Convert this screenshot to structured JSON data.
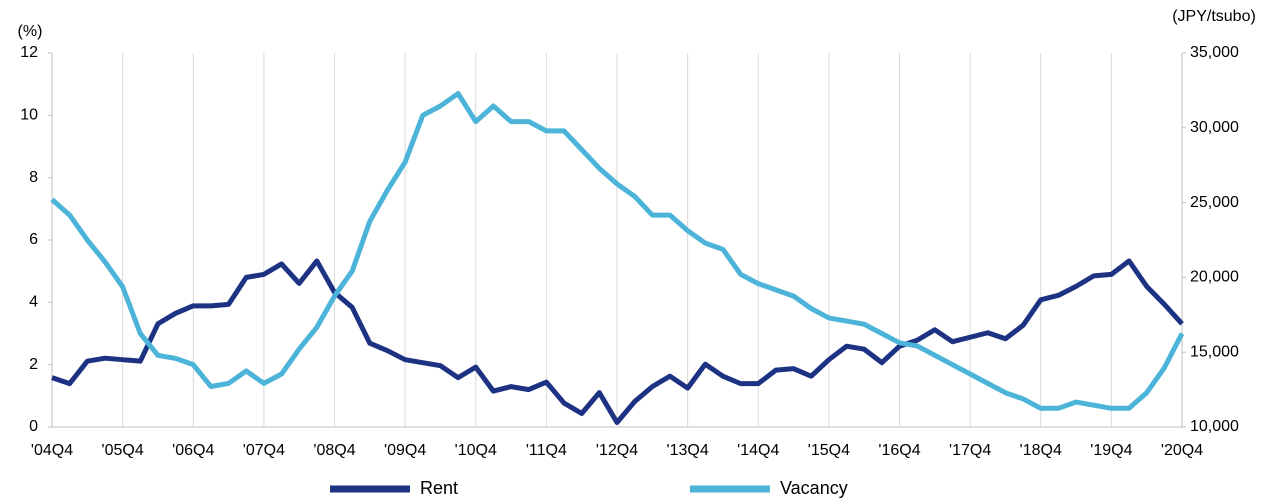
{
  "chart_data": {
    "type": "line",
    "y_label": "(%)",
    "y2_label": "(JPY/tsubo)",
    "categories": [
      "'04Q4",
      null,
      null,
      null,
      "'05Q4",
      null,
      null,
      null,
      "'06Q4",
      null,
      null,
      null,
      "'07Q4",
      null,
      null,
      null,
      "'08Q4",
      null,
      null,
      null,
      "'09Q4",
      null,
      null,
      null,
      "'10Q4",
      null,
      null,
      null,
      "'11Q4",
      null,
      null,
      null,
      "'12Q4",
      null,
      null,
      null,
      "'13Q4",
      null,
      null,
      null,
      "'14Q4",
      null,
      null,
      null,
      "'15Q4",
      null,
      null,
      null,
      "'16Q4",
      null,
      null,
      null,
      "'17Q4",
      null,
      null,
      null,
      "'18Q4",
      null,
      null,
      null,
      "'19Q4",
      null,
      null,
      null,
      "'20Q4"
    ],
    "series": [
      {
        "name": "Rent",
        "color": "#1e3283",
        "axis": "y2",
        "values": [
          13300,
          12900,
          14400,
          14600,
          14500,
          14400,
          16900,
          17600,
          18100,
          18100,
          18200,
          20000,
          20200,
          20900,
          19600,
          21100,
          19000,
          18000,
          15600,
          15100,
          14500,
          14300,
          14100,
          13300,
          14000,
          12400,
          12700,
          12500,
          13000,
          11600,
          10900,
          12300,
          10300,
          11700,
          12700,
          13400,
          12600,
          14200,
          13400,
          12900,
          12900,
          13800,
          13900,
          13400,
          14500,
          15400,
          15200,
          14300,
          15400,
          15800,
          16500,
          15700,
          16000,
          16300,
          15900,
          16800,
          18500,
          18800,
          19400,
          20100,
          20200,
          21100,
          19400,
          18200,
          16900
        ]
      },
      {
        "name": "Vacancy",
        "color": "#4bb4d8",
        "values": [
          7.3,
          6.8,
          6.0,
          5.3,
          4.5,
          3.0,
          2.3,
          2.2,
          2.0,
          1.3,
          1.4,
          1.8,
          1.4,
          1.7,
          2.5,
          3.2,
          4.2,
          5.0,
          6.6,
          7.6,
          8.5,
          10.0,
          10.3,
          10.7,
          9.8,
          10.3,
          9.8,
          9.8,
          9.5,
          9.5,
          8.9,
          8.3,
          7.8,
          7.4,
          6.8,
          6.8,
          6.3,
          5.9,
          5.7,
          4.9,
          4.6,
          4.4,
          4.2,
          3.8,
          3.5,
          3.4,
          3.3,
          3.0,
          2.7,
          2.6,
          2.3,
          2.0,
          1.7,
          1.4,
          1.1,
          0.9,
          0.6,
          0.6,
          0.8,
          0.7,
          0.6,
          0.6,
          1.1,
          1.9,
          3.0
        ]
      }
    ],
    "ylim": [
      0,
      12
    ],
    "yticks": [
      0,
      2,
      4,
      6,
      8,
      10,
      12
    ],
    "y2lim": [
      10000,
      35000
    ],
    "y2ticks": [
      {
        "value": 10000,
        "label": "10,000"
      },
      {
        "value": 15000,
        "label": "15,000"
      },
      {
        "value": 20000,
        "label": "20,000"
      },
      {
        "value": 25000,
        "label": "25,000"
      },
      {
        "value": 30000,
        "label": "30,000"
      },
      {
        "value": 35000,
        "label": "35,000"
      }
    ],
    "xgrid": true,
    "legend": "bottom"
  }
}
